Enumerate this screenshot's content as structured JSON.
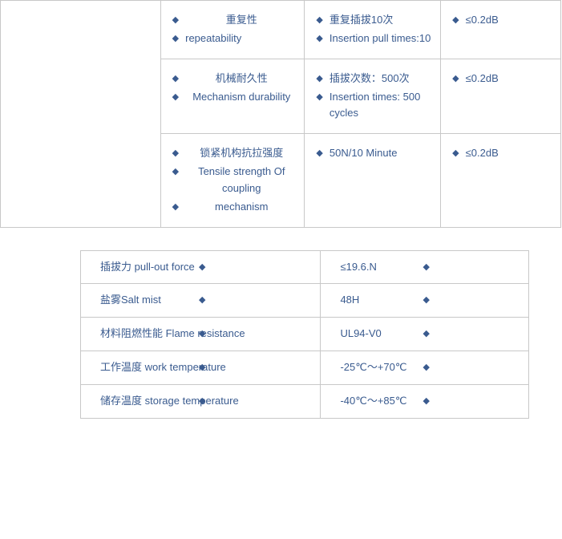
{
  "colors": {
    "text": "#3a5b8f",
    "border": "#c8c8c8",
    "background": "#ffffff"
  },
  "fonts": {
    "size_pt": 13,
    "diamond_size_pt": 11
  },
  "table1": {
    "type": "table",
    "rows": [
      {
        "a": [
          "重复性",
          "repeatability"
        ],
        "b": [
          "重复插拔10次",
          "Insertion pull times:10"
        ],
        "c": [
          "≤0.2dB"
        ]
      },
      {
        "a": [
          "机械耐久性",
          "Mechanism durability"
        ],
        "b": [
          "插拔次数：500次",
          "Insertion times: 500 cycles"
        ],
        "c": [
          "≤0.2dB"
        ]
      },
      {
        "a": [
          "锁紧机构抗拉强度",
          "Tensile strength Of coupling",
          "mechanism"
        ],
        "b": [
          "50N/10 Minute"
        ],
        "c": [
          "≤0.2dB"
        ]
      }
    ]
  },
  "table2": {
    "type": "table",
    "rows": [
      {
        "l": "插拔力 pull-out force",
        "r": "≤19.6.N"
      },
      {
        "l": "盐雾Salt mist",
        "r": "48H"
      },
      {
        "l": "材料阻燃性能 Flame resistance",
        "r": "UL94-V0"
      },
      {
        "l": "工作温度 work temperature",
        "r": "-25℃～+70℃"
      },
      {
        "l": "储存温度 storage temperature",
        "r": "-40℃～+85℃"
      }
    ]
  }
}
